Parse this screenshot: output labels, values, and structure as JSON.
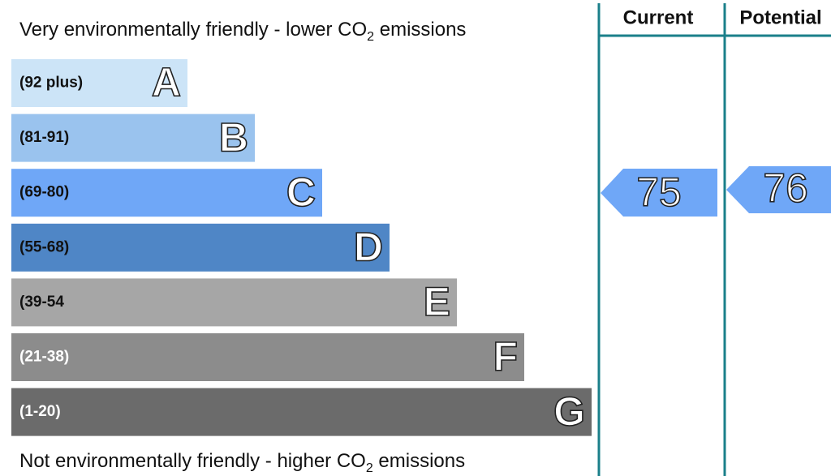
{
  "top_label": {
    "text": "Very environmentally friendly - lower CO",
    "sub": "2",
    "tail": " emissions"
  },
  "bottom_label": {
    "text": "Not environmentally friendly - higher CO",
    "sub": "2",
    "tail": " emissions"
  },
  "bands": [
    {
      "range": "(92 plus)",
      "letter": "A",
      "color": "#cce4f7",
      "text_color": "#111"
    },
    {
      "range": "(81-91)",
      "letter": "B",
      "color": "#9ac3ee",
      "text_color": "#111"
    },
    {
      "range": "(69-80)",
      "letter": "C",
      "color": "#6fa7f7",
      "text_color": "#111"
    },
    {
      "range": "(55-68)",
      "letter": "D",
      "color": "#4f86c6",
      "text_color": "#111"
    },
    {
      "range": "(39-54",
      "letter": "E",
      "color": "#a6a6a6",
      "text_color": "#111"
    },
    {
      "range": "(21-38)",
      "letter": "F",
      "color": "#8c8c8c",
      "text_color": "#fff"
    },
    {
      "range": "(1-20)",
      "letter": "G",
      "color": "#6b6b6b",
      "text_color": "#fff"
    }
  ],
  "columns": {
    "current": "Current",
    "potential": "Potential"
  },
  "ratings": {
    "current": 75,
    "potential": 76,
    "color": "#6fa7f7"
  }
}
